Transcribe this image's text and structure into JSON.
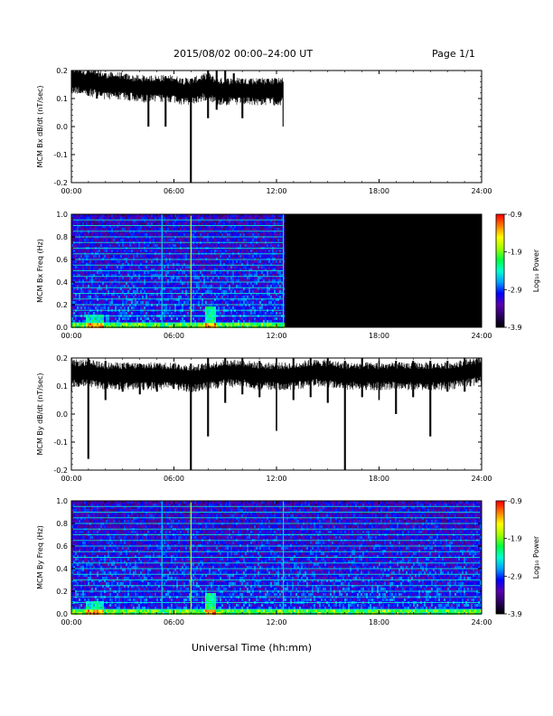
{
  "header": {
    "title": "2015/08/02  00:00–24:00 UT",
    "page": "Page 1/1"
  },
  "footer": {
    "xlabel": "Universal Time (hh:mm)"
  },
  "colors": {
    "trace": "#000000",
    "spectrogram_background": "#000000",
    "colormap": [
      "#000000",
      "#2a0060",
      "#5a00b0",
      "#0000ff",
      "#00a0ff",
      "#00ffd0",
      "#00ff40",
      "#a0ff00",
      "#ffff00",
      "#ff8000",
      "#ff0000"
    ]
  },
  "chart_data": [
    {
      "type": "line",
      "ylabel": "MCM Bx dB/dt (nT/sec)",
      "xlim": [
        0,
        24
      ],
      "ylim": [
        -0.2,
        0.2
      ],
      "xticks": [
        "00:00",
        "06:00",
        "12:00",
        "18:00",
        "24:00"
      ],
      "yticks": [
        "-0.2",
        "-0.1",
        "0.0",
        "0.1",
        "0.2"
      ],
      "grid": false,
      "data_end_hours": 12.4,
      "series": [
        {
          "x": [
            0,
            0.5,
            1,
            1.5,
            2,
            2.5,
            3,
            3.5,
            4,
            4.5,
            5,
            5.5,
            6,
            6.5,
            7,
            7.5,
            8,
            8.5,
            9,
            9.5,
            10,
            10.5,
            11,
            11.5,
            12,
            12.4
          ],
          "y_mean": [
            0.17,
            0.17,
            0.16,
            0.16,
            0.15,
            0.15,
            0.15,
            0.14,
            0.14,
            0.14,
            0.14,
            0.14,
            0.14,
            0.13,
            0.13,
            0.14,
            0.15,
            0.13,
            0.13,
            0.13,
            0.13,
            0.13,
            0.13,
            0.13,
            0.13,
            0.13
          ],
          "y_min": [
            0.12,
            0.12,
            0.11,
            0.1,
            0.12,
            0.11,
            0.12,
            0.12,
            0.1,
            0.0,
            0.11,
            0.0,
            0.11,
            0.1,
            -0.2,
            0.1,
            0.03,
            0.06,
            0.09,
            0.1,
            0.03,
            0.09,
            0.09,
            0.1,
            0.08,
            0.0
          ],
          "y_max": [
            0.2,
            0.2,
            0.2,
            0.19,
            0.19,
            0.18,
            0.18,
            0.17,
            0.17,
            0.17,
            0.17,
            0.18,
            0.17,
            0.17,
            0.17,
            0.17,
            0.2,
            0.2,
            0.2,
            0.19,
            0.17,
            0.17,
            0.17,
            0.17,
            0.17,
            0.16
          ]
        }
      ]
    },
    {
      "type": "heatmap",
      "ylabel": "MCM Bx Freq (Hz)",
      "xlim": [
        0,
        24
      ],
      "ylim": [
        0,
        1.0
      ],
      "xticks": [
        "00:00",
        "06:00",
        "12:00",
        "18:00",
        "24:00"
      ],
      "yticks": [
        "0.0",
        "0.2",
        "0.4",
        "0.6",
        "0.8",
        "1.0"
      ],
      "colorbar": {
        "label": "Log₁₀ Power",
        "range": [
          -3.9,
          -0.9
        ],
        "ticks": [
          "-0.9",
          "-1.9",
          "-2.9",
          "-3.9"
        ]
      },
      "data_end_hours": 12.4,
      "harmonic_lines_hz": [
        0.04,
        0.1,
        0.15,
        0.2,
        0.25,
        0.3,
        0.35,
        0.4,
        0.45,
        0.5,
        0.55,
        0.6,
        0.65,
        0.7,
        0.75,
        0.8,
        0.85,
        0.9,
        0.95
      ],
      "vertical_spikes_hours": [
        5.3,
        7.0,
        12.4
      ]
    },
    {
      "type": "line",
      "ylabel": "MCM By dB/dt (nT/sec)",
      "xlim": [
        0,
        24
      ],
      "ylim": [
        -0.2,
        0.2
      ],
      "xticks": [
        "00:00",
        "06:00",
        "12:00",
        "18:00",
        "24:00"
      ],
      "yticks": [
        "-0.2",
        "-0.1",
        "0.0",
        "0.1",
        "0.2"
      ],
      "grid": false,
      "data_end_hours": 24,
      "series": [
        {
          "x": [
            0,
            1,
            2,
            3,
            4,
            5,
            6,
            7,
            8,
            9,
            10,
            11,
            12,
            13,
            14,
            15,
            16,
            17,
            18,
            19,
            20,
            21,
            22,
            23,
            24
          ],
          "y_mean": [
            0.15,
            0.15,
            0.14,
            0.14,
            0.14,
            0.14,
            0.14,
            0.13,
            0.14,
            0.15,
            0.15,
            0.14,
            0.14,
            0.14,
            0.15,
            0.15,
            0.14,
            0.14,
            0.14,
            0.14,
            0.14,
            0.14,
            0.14,
            0.15,
            0.16
          ],
          "y_min": [
            0.08,
            -0.16,
            0.05,
            0.08,
            0.07,
            0.08,
            0.09,
            -0.2,
            -0.08,
            0.04,
            0.07,
            0.06,
            -0.06,
            0.05,
            0.06,
            0.04,
            -0.2,
            0.06,
            0.05,
            0.0,
            0.06,
            -0.08,
            0.08,
            0.08,
            0.1
          ],
          "y_max": [
            0.2,
            0.2,
            0.19,
            0.18,
            0.18,
            0.18,
            0.18,
            0.18,
            0.2,
            0.2,
            0.2,
            0.19,
            0.2,
            0.2,
            0.2,
            0.2,
            0.19,
            0.2,
            0.19,
            0.19,
            0.19,
            0.19,
            0.19,
            0.2,
            0.2
          ]
        }
      ]
    },
    {
      "type": "heatmap",
      "ylabel": "MCM By Freq (Hz)",
      "xlim": [
        0,
        24
      ],
      "ylim": [
        0,
        1.0
      ],
      "xticks": [
        "00:00",
        "06:00",
        "12:00",
        "18:00",
        "24:00"
      ],
      "yticks": [
        "0.0",
        "0.2",
        "0.4",
        "0.6",
        "0.8",
        "1.0"
      ],
      "colorbar": {
        "label": "Log₁₀ Power",
        "range": [
          -3.9,
          -0.9
        ],
        "ticks": [
          "-0.9",
          "-1.9",
          "-2.9",
          "-3.9"
        ]
      },
      "data_end_hours": 24,
      "harmonic_lines_hz": [
        0.04,
        0.1,
        0.15,
        0.2,
        0.25,
        0.3,
        0.35,
        0.4,
        0.45,
        0.5,
        0.55,
        0.6,
        0.65,
        0.7,
        0.75,
        0.8,
        0.85,
        0.9,
        0.95
      ],
      "vertical_spikes_hours": [
        5.3,
        7.0,
        12.4
      ]
    }
  ]
}
